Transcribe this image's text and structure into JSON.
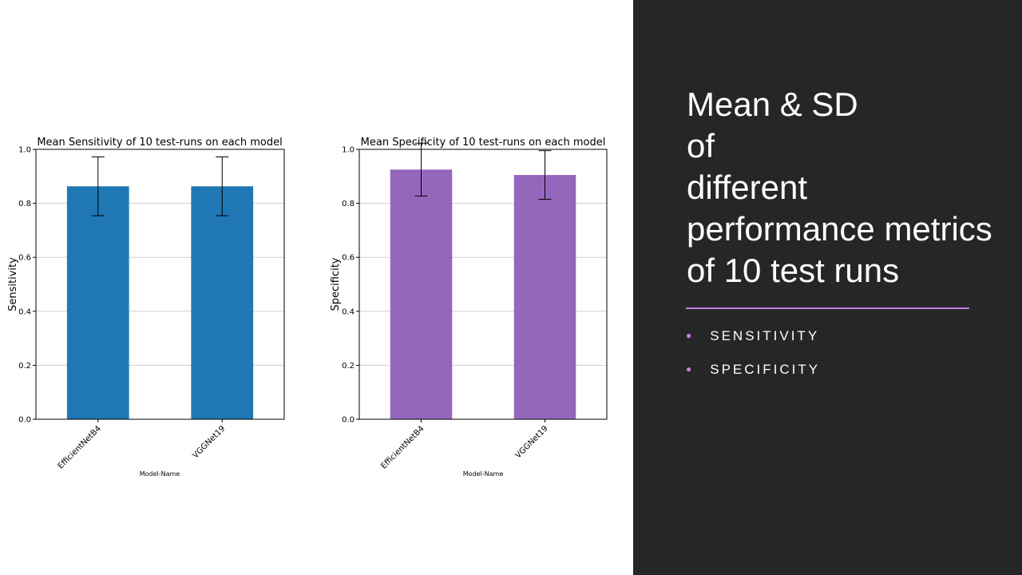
{
  "slide": {
    "title_lines": [
      "Mean & SD",
      "of",
      "different",
      "performance metrics",
      "of 10 test runs"
    ],
    "bullets": [
      "SENSITIVITY",
      "SPECIFICITY"
    ],
    "accent_color": "#c77ee0",
    "panel_color": "#262626"
  },
  "chart_data": [
    {
      "type": "bar",
      "title": "Mean Sensitivity of 10 test-runs on each model",
      "xlabel": "Model-Name",
      "ylabel": "Sensitivity",
      "categories": [
        "EfficientNetB4",
        "VGGNet19"
      ],
      "values": [
        0.863,
        0.863
      ],
      "error": [
        0.109,
        0.109
      ],
      "ylim": [
        0,
        1
      ],
      "yticks": [
        "0.0",
        "0.2",
        "0.4",
        "0.6",
        "0.8",
        "1.0"
      ],
      "grid": "y",
      "color": "#1f77b4"
    },
    {
      "type": "bar",
      "title": "Mean Specificity of 10 test-runs on each model",
      "xlabel": "Model-Name",
      "ylabel": "Specificity",
      "categories": [
        "EfficientNetB4",
        "VGGNet19"
      ],
      "values": [
        0.925,
        0.905
      ],
      "error": [
        0.098,
        0.09
      ],
      "ylim": [
        0,
        1
      ],
      "yticks": [
        "0.0",
        "0.2",
        "0.4",
        "0.6",
        "0.8",
        "1.0"
      ],
      "grid": "y",
      "color": "#9467bd"
    }
  ]
}
